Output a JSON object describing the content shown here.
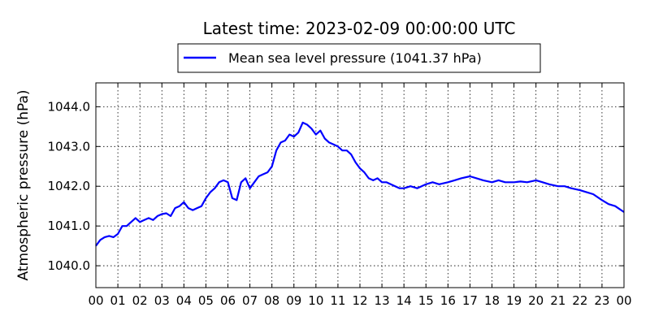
{
  "chart_data": {
    "type": "line",
    "title": "Latest time: 2023-02-09 00:00:00 UTC",
    "xlabel": "",
    "ylabel": "Atmospheric pressure (hPa)",
    "xlim": [
      0,
      24
    ],
    "ylim": [
      1039.45,
      1044.6
    ],
    "x_tick_values": [
      0,
      1,
      2,
      3,
      4,
      5,
      6,
      7,
      8,
      9,
      10,
      11,
      12,
      13,
      14,
      15,
      16,
      17,
      18,
      19,
      20,
      21,
      22,
      23,
      24
    ],
    "x_tick_labels": [
      "00",
      "01",
      "02",
      "03",
      "04",
      "05",
      "06",
      "07",
      "08",
      "09",
      "10",
      "11",
      "12",
      "13",
      "14",
      "15",
      "16",
      "17",
      "18",
      "19",
      "20",
      "21",
      "22",
      "23",
      "00"
    ],
    "y_tick_values": [
      1040.0,
      1041.0,
      1042.0,
      1043.0,
      1044.0
    ],
    "y_tick_labels": [
      "1040.0",
      "1041.0",
      "1042.0",
      "1043.0",
      "1044.0"
    ],
    "grid": true,
    "legend_position": "top-center, above plot",
    "series": [
      {
        "name": "Mean sea level pressure (1041.37 hPa)",
        "color": "#0000ff",
        "x": [
          0.0,
          0.2,
          0.4,
          0.6,
          0.8,
          1.0,
          1.2,
          1.4,
          1.6,
          1.8,
          2.0,
          2.2,
          2.4,
          2.6,
          2.8,
          3.0,
          3.2,
          3.4,
          3.6,
          3.8,
          4.0,
          4.2,
          4.4,
          4.6,
          4.8,
          5.0,
          5.2,
          5.4,
          5.6,
          5.8,
          6.0,
          6.2,
          6.4,
          6.6,
          6.8,
          7.0,
          7.2,
          7.4,
          7.6,
          7.8,
          8.0,
          8.2,
          8.4,
          8.6,
          8.8,
          9.0,
          9.2,
          9.4,
          9.6,
          9.8,
          10.0,
          10.2,
          10.4,
          10.6,
          10.8,
          11.0,
          11.2,
          11.4,
          11.6,
          11.8,
          12.0,
          12.2,
          12.4,
          12.6,
          12.8,
          13.0,
          13.2,
          13.4,
          13.6,
          13.8,
          14.0,
          14.3,
          14.6,
          15.0,
          15.3,
          15.6,
          16.0,
          16.3,
          16.6,
          17.0,
          17.3,
          17.6,
          18.0,
          18.3,
          18.6,
          19.0,
          19.3,
          19.6,
          20.0,
          20.3,
          20.6,
          21.0,
          21.3,
          21.6,
          22.0,
          22.3,
          22.6,
          23.0,
          23.3,
          23.6,
          24.0
        ],
        "y": [
          1040.5,
          1040.65,
          1040.72,
          1040.75,
          1040.72,
          1040.8,
          1041.0,
          1041.0,
          1041.1,
          1041.2,
          1041.1,
          1041.15,
          1041.2,
          1041.15,
          1041.25,
          1041.3,
          1041.32,
          1041.25,
          1041.45,
          1041.5,
          1041.6,
          1041.45,
          1041.4,
          1041.45,
          1041.5,
          1041.7,
          1041.85,
          1041.95,
          1042.1,
          1042.15,
          1042.1,
          1041.7,
          1041.65,
          1042.1,
          1042.2,
          1041.95,
          1042.1,
          1042.25,
          1042.3,
          1042.35,
          1042.5,
          1042.9,
          1043.1,
          1043.15,
          1043.3,
          1043.25,
          1043.35,
          1043.6,
          1043.55,
          1043.45,
          1043.3,
          1043.4,
          1043.2,
          1043.1,
          1043.05,
          1043.0,
          1042.9,
          1042.9,
          1042.8,
          1042.6,
          1042.45,
          1042.35,
          1042.2,
          1042.15,
          1042.2,
          1042.1,
          1042.1,
          1042.05,
          1042.0,
          1041.95,
          1041.95,
          1042.0,
          1041.95,
          1042.05,
          1042.1,
          1042.05,
          1042.1,
          1042.15,
          1042.2,
          1042.25,
          1042.2,
          1042.15,
          1042.1,
          1042.15,
          1042.1,
          1042.1,
          1042.12,
          1042.1,
          1042.15,
          1042.1,
          1042.05,
          1042.0,
          1042.0,
          1041.95,
          1041.9,
          1041.85,
          1041.8,
          1041.65,
          1041.55,
          1041.5,
          1041.35
        ]
      }
    ]
  }
}
